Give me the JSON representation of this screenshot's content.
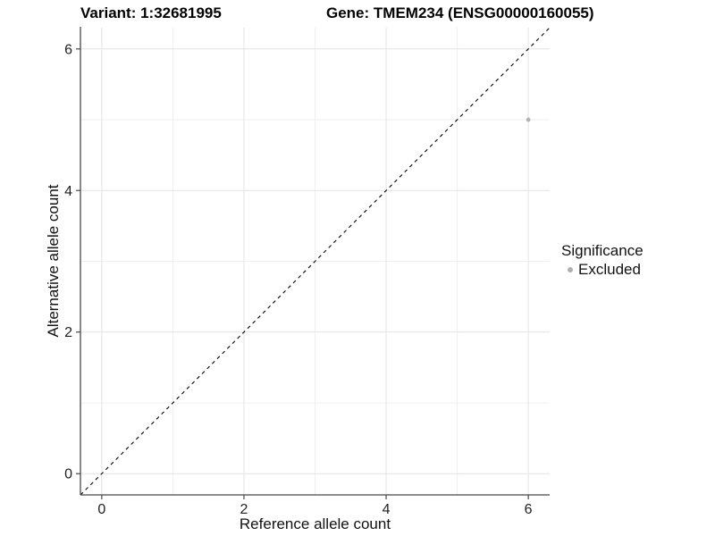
{
  "chart_data": {
    "type": "scatter",
    "title_left": "Variant: 1:32681995",
    "title_right": "Gene: TMEM234 (ENSG00000160055)",
    "xlabel": "Reference allele count",
    "ylabel": "Alternative allele count",
    "xlim": [
      -0.3,
      6.3
    ],
    "ylim": [
      -0.3,
      6.3
    ],
    "x_ticks": [
      0,
      2,
      4,
      6
    ],
    "y_ticks": [
      0,
      2,
      4,
      6
    ],
    "x_minor": [
      1,
      3,
      5
    ],
    "y_minor": [
      1,
      3,
      5
    ],
    "grid": true,
    "points": [
      {
        "x": 6,
        "y": 5,
        "series": "Excluded"
      }
    ],
    "reference_line": {
      "type": "identity",
      "slope": 1,
      "intercept": 0,
      "style": "dashed",
      "color": "#000000"
    },
    "legend": {
      "position": "right",
      "title": "Significance",
      "entries": [
        {
          "label": "Excluded",
          "color": "#b0b0b0"
        }
      ]
    },
    "colors": {
      "point": "#b3b3b3",
      "grid_major": "#e3e3e3",
      "grid_minor": "#efefef",
      "axis_line": "#484848",
      "tick_text": "#1f1f1f"
    }
  }
}
